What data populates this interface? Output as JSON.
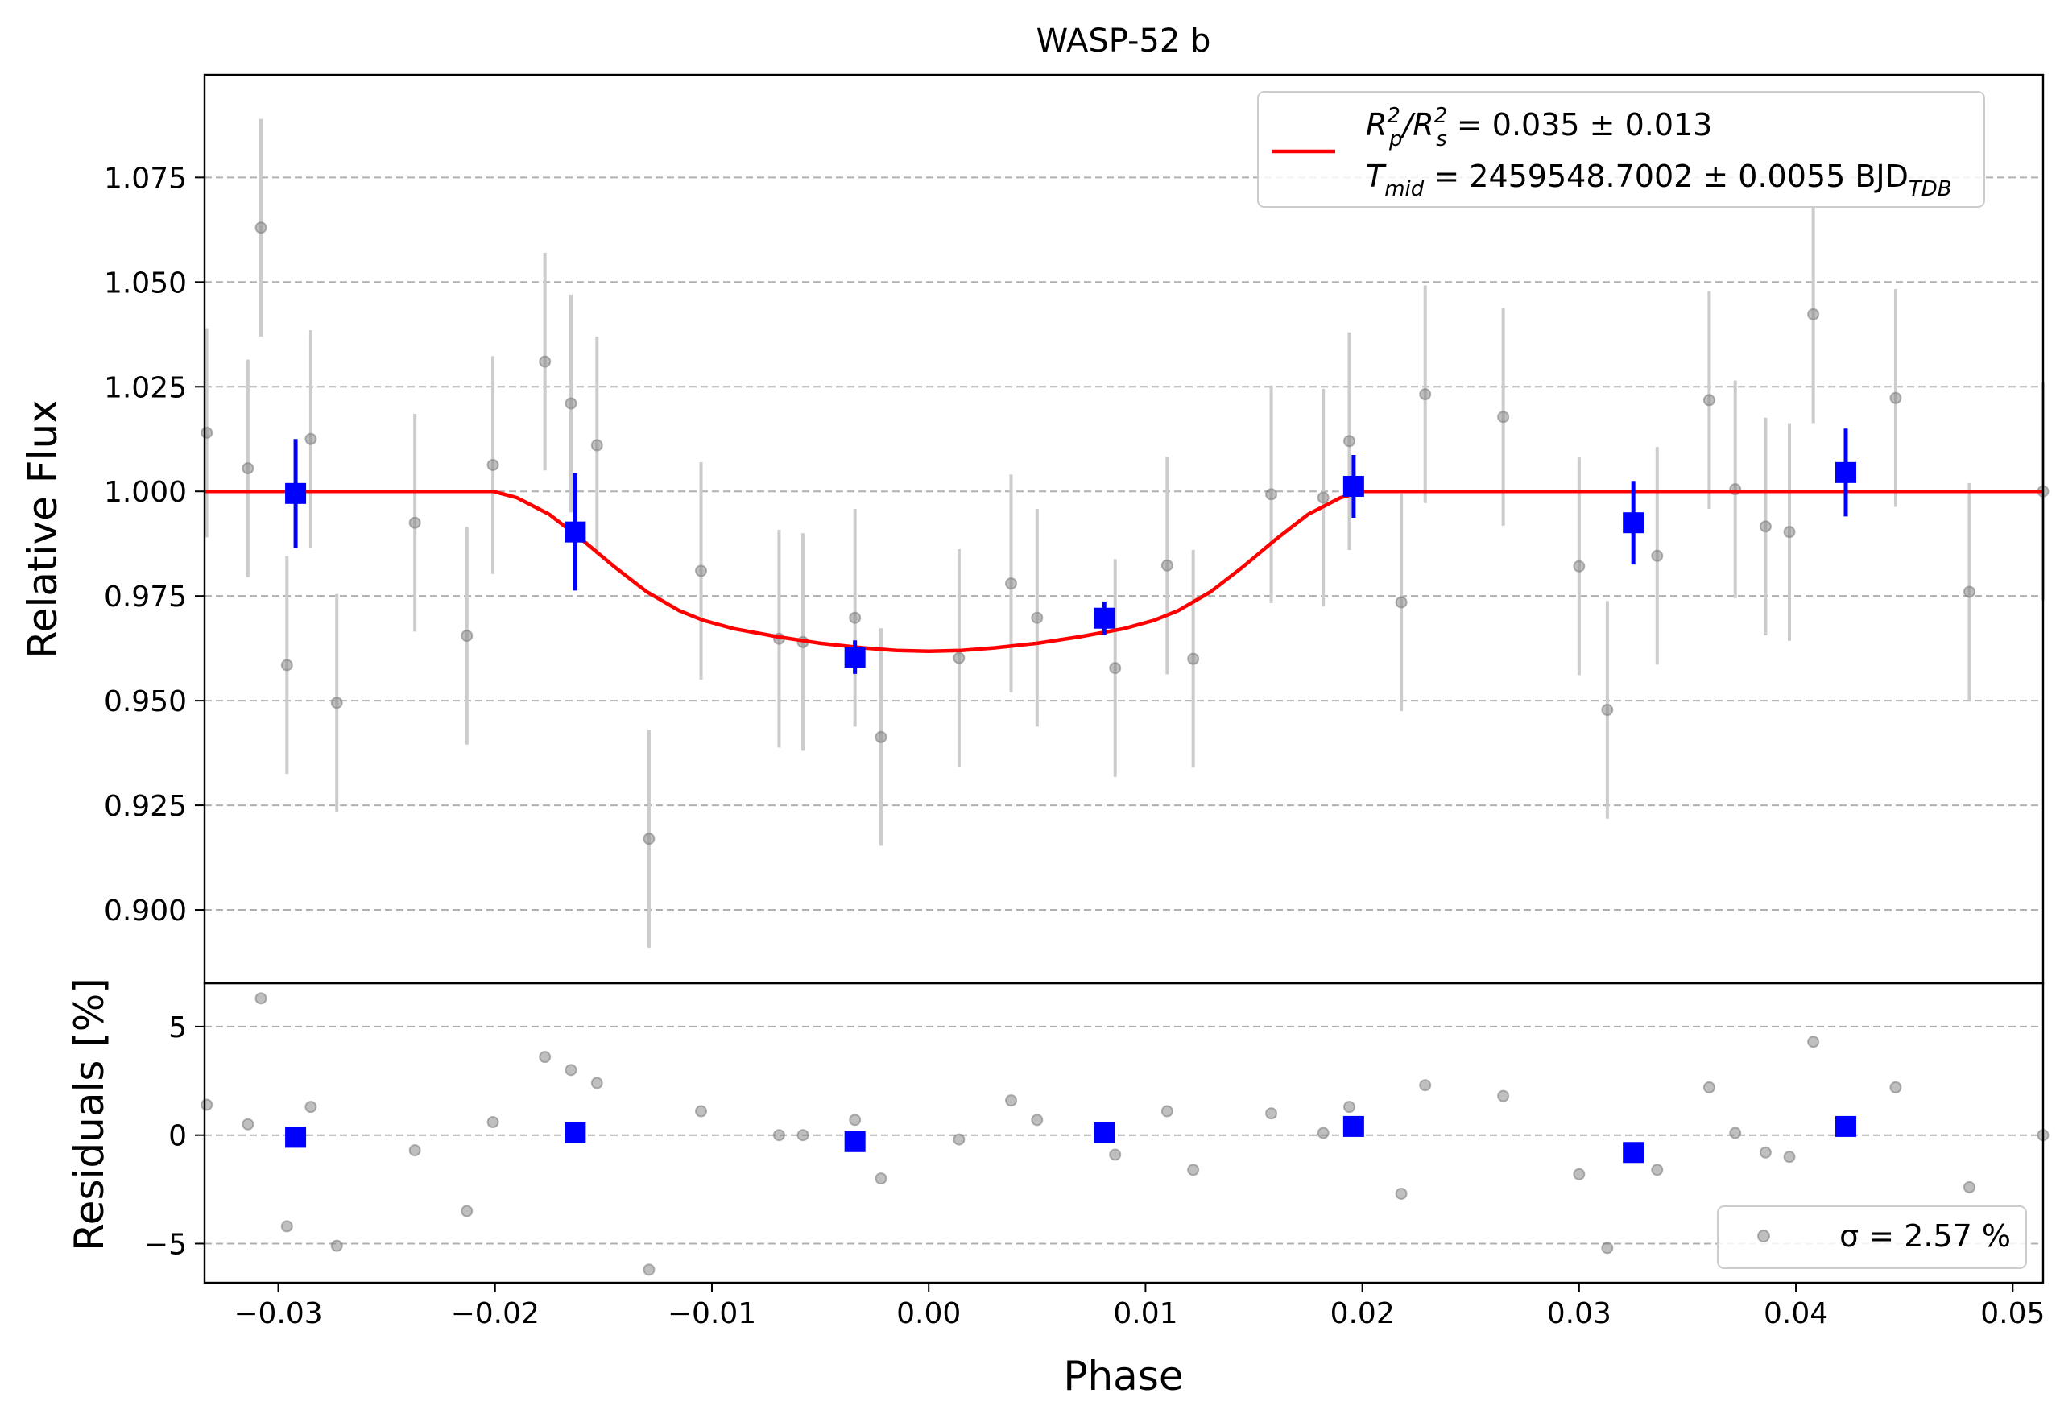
{
  "chart_data": [
    {
      "type": "scatter",
      "panel": "main",
      "title": "WASP-52 b",
      "xlabel": "",
      "ylabel": "Relative Flux",
      "xlim": [
        -0.0334,
        0.0514
      ],
      "ylim": [
        0.8825,
        1.0995
      ],
      "xticks": [],
      "yticks": [
        {
          "value": 0.9,
          "label": "0.900"
        },
        {
          "value": 0.925,
          "label": "0.925"
        },
        {
          "value": 0.95,
          "label": "0.950"
        },
        {
          "value": 0.975,
          "label": "0.975"
        },
        {
          "value": 1.0,
          "label": "1.000"
        },
        {
          "value": 1.025,
          "label": "1.025"
        },
        {
          "value": 1.05,
          "label": "1.050"
        },
        {
          "value": 1.075,
          "label": "1.075"
        }
      ],
      "grid": "horizontal dashed",
      "legend": {
        "placement": "top-right",
        "line1": {
          "main": "R",
          "sub1": "p",
          "sup1": "2",
          "mid": "/R",
          "sub2": "s",
          "sup2": "2",
          "tail": " = 0.035 ± 0.013"
        },
        "line2": {
          "main": "T",
          "sub1": "mid",
          "tail": " = 2459548.7002 ± 0.0055 BJD",
          "sub2": "TDB"
        }
      },
      "colors": {
        "raw": "#808080",
        "rawerr": "#cccccc",
        "binned": "#0000ff",
        "model": "#ff0000",
        "grid": "#b0b0b0"
      },
      "series": [
        {
          "kind": "raw-points",
          "points": [
            {
              "x": -0.0333,
              "y": 1.014,
              "err": 0.025
            },
            {
              "x": -0.0314,
              "y": 1.0055,
              "err": 0.026
            },
            {
              "x": -0.0308,
              "y": 1.063,
              "err": 0.026
            },
            {
              "x": -0.0296,
              "y": 0.9585,
              "err": 0.026
            },
            {
              "x": -0.0285,
              "y": 1.0125,
              "err": 0.026
            },
            {
              "x": -0.0273,
              "y": 0.9495,
              "err": 0.026
            },
            {
              "x": -0.0237,
              "y": 0.9925,
              "err": 0.026
            },
            {
              "x": -0.0213,
              "y": 0.9655,
              "err": 0.026
            },
            {
              "x": -0.0201,
              "y": 1.0063,
              "err": 0.026
            },
            {
              "x": -0.0177,
              "y": 1.031,
              "err": 0.026
            },
            {
              "x": -0.0165,
              "y": 1.021,
              "err": 0.026
            },
            {
              "x": -0.0153,
              "y": 1.011,
              "err": 0.026
            },
            {
              "x": -0.0129,
              "y": 0.917,
              "err": 0.026
            },
            {
              "x": -0.0105,
              "y": 0.981,
              "err": 0.026
            },
            {
              "x": -0.0069,
              "y": 0.9648,
              "err": 0.026
            },
            {
              "x": -0.0058,
              "y": 0.964,
              "err": 0.026
            },
            {
              "x": -0.0034,
              "y": 0.9698,
              "err": 0.026
            },
            {
              "x": -0.0022,
              "y": 0.9413,
              "err": 0.026
            },
            {
              "x": 0.0014,
              "y": 0.9602,
              "err": 0.026
            },
            {
              "x": 0.0038,
              "y": 0.978,
              "err": 0.026
            },
            {
              "x": 0.005,
              "y": 0.9698,
              "err": 0.026
            },
            {
              "x": 0.0086,
              "y": 0.9578,
              "err": 0.026
            },
            {
              "x": 0.011,
              "y": 0.9823,
              "err": 0.026
            },
            {
              "x": 0.0122,
              "y": 0.96,
              "err": 0.026
            },
            {
              "x": 0.0158,
              "y": 0.9993,
              "err": 0.026
            },
            {
              "x": 0.0182,
              "y": 0.9985,
              "err": 0.026
            },
            {
              "x": 0.0194,
              "y": 1.012,
              "err": 0.026
            },
            {
              "x": 0.0218,
              "y": 0.9735,
              "err": 0.026
            },
            {
              "x": 0.0229,
              "y": 1.0232,
              "err": 0.026
            },
            {
              "x": 0.0265,
              "y": 1.0178,
              "err": 0.026
            },
            {
              "x": 0.03,
              "y": 0.9821,
              "err": 0.026
            },
            {
              "x": 0.0313,
              "y": 0.9478,
              "err": 0.026
            },
            {
              "x": 0.0336,
              "y": 0.9846,
              "err": 0.026
            },
            {
              "x": 0.036,
              "y": 1.0218,
              "err": 0.026
            },
            {
              "x": 0.0372,
              "y": 1.0005,
              "err": 0.026
            },
            {
              "x": 0.0386,
              "y": 0.9916,
              "err": 0.026
            },
            {
              "x": 0.0397,
              "y": 0.9903,
              "err": 0.026
            },
            {
              "x": 0.0408,
              "y": 1.0423,
              "err": 0.026
            },
            {
              "x": 0.0446,
              "y": 1.0223,
              "err": 0.026
            },
            {
              "x": 0.048,
              "y": 0.976,
              "err": 0.026
            },
            {
              "x": 0.0514,
              "y": 1.0,
              "err": 0.026
            }
          ]
        },
        {
          "kind": "binned",
          "points": [
            {
              "x": -0.0292,
              "y": 0.9995,
              "err": 0.013
            },
            {
              "x": -0.0163,
              "y": 0.9903,
              "err": 0.014
            },
            {
              "x": -0.0034,
              "y": 0.9604,
              "err": 0.004
            },
            {
              "x": 0.0081,
              "y": 0.9697,
              "err": 0.004
            },
            {
              "x": 0.0196,
              "y": 1.0012,
              "err": 0.0075
            },
            {
              "x": 0.0325,
              "y": 0.9925,
              "err": 0.01
            },
            {
              "x": 0.0423,
              "y": 1.0045,
              "err": 0.0105
            }
          ]
        },
        {
          "kind": "model",
          "points": [
            {
              "x": -0.0334,
              "y": 1.0
            },
            {
              "x": -0.0201,
              "y": 1.0
            },
            {
              "x": -0.019,
              "y": 0.9985
            },
            {
              "x": -0.0175,
              "y": 0.9945
            },
            {
              "x": -0.016,
              "y": 0.9885
            },
            {
              "x": -0.0145,
              "y": 0.982
            },
            {
              "x": -0.013,
              "y": 0.976
            },
            {
              "x": -0.0115,
              "y": 0.9715
            },
            {
              "x": -0.0104,
              "y": 0.9692
            },
            {
              "x": -0.009,
              "y": 0.9672
            },
            {
              "x": -0.007,
              "y": 0.9653
            },
            {
              "x": -0.005,
              "y": 0.9637
            },
            {
              "x": -0.003,
              "y": 0.9626
            },
            {
              "x": -0.0015,
              "y": 0.962
            },
            {
              "x": 0.0,
              "y": 0.9618
            },
            {
              "x": 0.0015,
              "y": 0.962
            },
            {
              "x": 0.003,
              "y": 0.9626
            },
            {
              "x": 0.005,
              "y": 0.9637
            },
            {
              "x": 0.007,
              "y": 0.9653
            },
            {
              "x": 0.009,
              "y": 0.9672
            },
            {
              "x": 0.0104,
              "y": 0.9692
            },
            {
              "x": 0.0115,
              "y": 0.9715
            },
            {
              "x": 0.013,
              "y": 0.976
            },
            {
              "x": 0.0145,
              "y": 0.982
            },
            {
              "x": 0.016,
              "y": 0.9885
            },
            {
              "x": 0.0175,
              "y": 0.9945
            },
            {
              "x": 0.019,
              "y": 0.9985
            },
            {
              "x": 0.0201,
              "y": 1.0
            },
            {
              "x": 0.0514,
              "y": 1.0
            }
          ]
        }
      ]
    },
    {
      "type": "scatter",
      "panel": "residuals",
      "title": "",
      "xlabel": "Phase",
      "ylabel": "Residuals [%]",
      "xlim": [
        -0.0334,
        0.0514
      ],
      "ylim": [
        -6.8,
        7.0
      ],
      "xticks": [
        {
          "value": -0.03,
          "label": "−0.03"
        },
        {
          "value": -0.02,
          "label": "−0.02"
        },
        {
          "value": -0.01,
          "label": "−0.01"
        },
        {
          "value": 0.0,
          "label": "0.00"
        },
        {
          "value": 0.01,
          "label": "0.01"
        },
        {
          "value": 0.02,
          "label": "0.02"
        },
        {
          "value": 0.03,
          "label": "0.03"
        },
        {
          "value": 0.04,
          "label": "0.04"
        },
        {
          "value": 0.05,
          "label": "0.05"
        }
      ],
      "yticks": [
        {
          "value": -5,
          "label": "−5"
        },
        {
          "value": 0,
          "label": "0"
        },
        {
          "value": 5,
          "label": "5"
        }
      ],
      "grid": "horizontal dashed",
      "legend": {
        "placement": "bottom-right",
        "label": "σ = 2.57 %"
      },
      "series": [
        {
          "kind": "raw-residuals",
          "points": [
            {
              "x": -0.0333,
              "y": 1.4
            },
            {
              "x": -0.0314,
              "y": 0.5
            },
            {
              "x": -0.0308,
              "y": 6.3
            },
            {
              "x": -0.0296,
              "y": -4.2
            },
            {
              "x": -0.0285,
              "y": 1.3
            },
            {
              "x": -0.0273,
              "y": -5.1
            },
            {
              "x": -0.0237,
              "y": -0.7
            },
            {
              "x": -0.0213,
              "y": -3.5
            },
            {
              "x": -0.0201,
              "y": 0.6
            },
            {
              "x": -0.0177,
              "y": 3.6
            },
            {
              "x": -0.0165,
              "y": 3.0
            },
            {
              "x": -0.0153,
              "y": 2.4
            },
            {
              "x": -0.0129,
              "y": -6.2
            },
            {
              "x": -0.0105,
              "y": 1.1
            },
            {
              "x": -0.0069,
              "y": 0.0
            },
            {
              "x": -0.0058,
              "y": 0.0
            },
            {
              "x": -0.0034,
              "y": 0.7
            },
            {
              "x": -0.0022,
              "y": -2.0
            },
            {
              "x": 0.0014,
              "y": -0.2
            },
            {
              "x": 0.0038,
              "y": 1.6
            },
            {
              "x": 0.005,
              "y": 0.7
            },
            {
              "x": 0.0086,
              "y": -0.9
            },
            {
              "x": 0.011,
              "y": 1.1
            },
            {
              "x": 0.0122,
              "y": -1.6
            },
            {
              "x": 0.0158,
              "y": 1.0
            },
            {
              "x": 0.0182,
              "y": 0.1
            },
            {
              "x": 0.0194,
              "y": 1.3
            },
            {
              "x": 0.0218,
              "y": -2.7
            },
            {
              "x": 0.0229,
              "y": 2.3
            },
            {
              "x": 0.0265,
              "y": 1.8
            },
            {
              "x": 0.03,
              "y": -1.8
            },
            {
              "x": 0.0313,
              "y": -5.2
            },
            {
              "x": 0.0336,
              "y": -1.6
            },
            {
              "x": 0.036,
              "y": 2.2
            },
            {
              "x": 0.0372,
              "y": 0.1
            },
            {
              "x": 0.0386,
              "y": -0.8
            },
            {
              "x": 0.0397,
              "y": -1.0
            },
            {
              "x": 0.0408,
              "y": 4.3
            },
            {
              "x": 0.0446,
              "y": 2.2
            },
            {
              "x": 0.048,
              "y": -2.4
            },
            {
              "x": 0.0514,
              "y": 0.0
            }
          ]
        },
        {
          "kind": "binned-residuals",
          "points": [
            {
              "x": -0.0292,
              "y": -0.1
            },
            {
              "x": -0.0163,
              "y": 0.1
            },
            {
              "x": -0.0034,
              "y": -0.3
            },
            {
              "x": 0.0081,
              "y": 0.1
            },
            {
              "x": 0.0196,
              "y": 0.4
            },
            {
              "x": 0.0325,
              "y": -0.8
            },
            {
              "x": 0.0423,
              "y": 0.4
            }
          ]
        }
      ]
    }
  ]
}
